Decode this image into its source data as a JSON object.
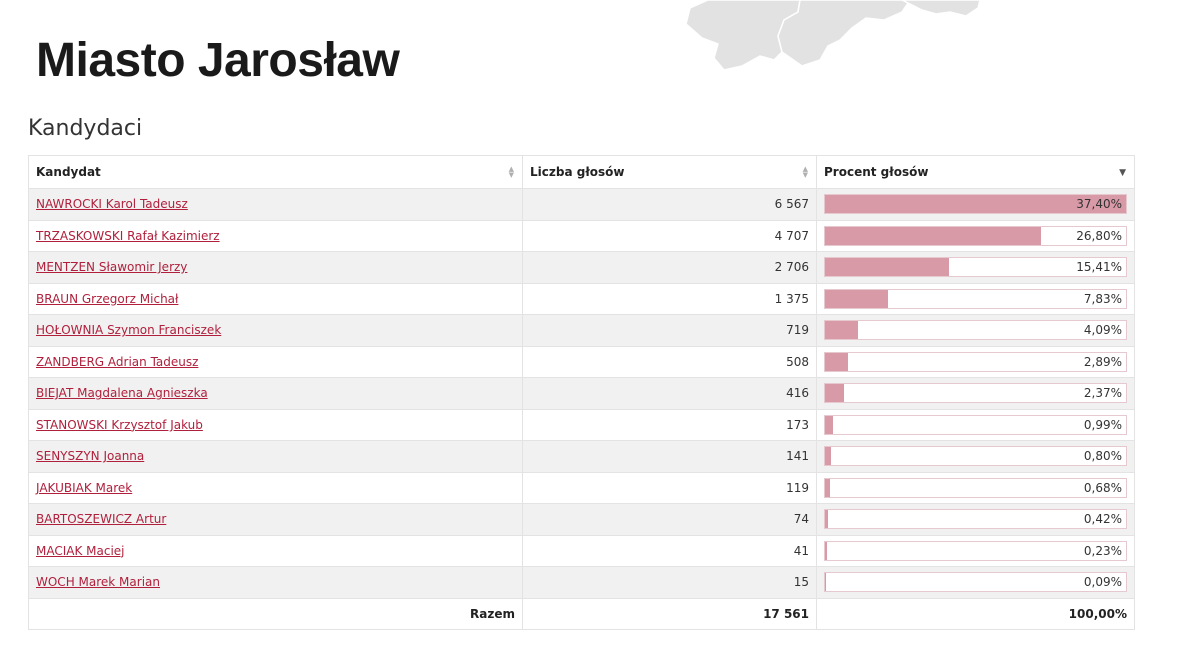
{
  "header": {
    "city_title": "Miasto Jarosław",
    "section_title": "Kandydaci"
  },
  "table": {
    "columns": [
      "Kandydat",
      "Liczba głosów",
      "Procent głosów"
    ],
    "sort": {
      "column": "Procent głosów",
      "direction": "descending"
    },
    "rows": [
      {
        "name": "NAWROCKI Karol Tadeusz",
        "votes": "6 567",
        "percent": "37,40%",
        "share": 0.374
      },
      {
        "name": "TRZASKOWSKI Rafał Kazimierz",
        "votes": "4 707",
        "percent": "26,80%",
        "share": 0.268
      },
      {
        "name": "MENTZEN Sławomir Jerzy",
        "votes": "2 706",
        "percent": "15,41%",
        "share": 0.1541
      },
      {
        "name": "BRAUN Grzegorz Michał",
        "votes": "1 375",
        "percent": "7,83%",
        "share": 0.0783
      },
      {
        "name": "HOŁOWNIA Szymon Franciszek",
        "votes": "719",
        "percent": "4,09%",
        "share": 0.0409
      },
      {
        "name": "ZANDBERG Adrian Tadeusz",
        "votes": "508",
        "percent": "2,89%",
        "share": 0.0289
      },
      {
        "name": "BIEJAT Magdalena Agnieszka",
        "votes": "416",
        "percent": "2,37%",
        "share": 0.0237
      },
      {
        "name": "STANOWSKI Krzysztof Jakub",
        "votes": "173",
        "percent": "0,99%",
        "share": 0.0099
      },
      {
        "name": "SENYSZYN Joanna",
        "votes": "141",
        "percent": "0,80%",
        "share": 0.008
      },
      {
        "name": "JAKUBIAK Marek",
        "votes": "119",
        "percent": "0,68%",
        "share": 0.0068
      },
      {
        "name": "BARTOSZEWICZ Artur",
        "votes": "74",
        "percent": "0,42%",
        "share": 0.0042
      },
      {
        "name": "MACIAK Maciej",
        "votes": "41",
        "percent": "0,23%",
        "share": 0.0023
      },
      {
        "name": "WOCH Marek Marian",
        "votes": "15",
        "percent": "0,09%",
        "share": 0.0009
      }
    ],
    "footer": {
      "label": "Razem",
      "votes": "17 561",
      "percent": "100,00%"
    }
  },
  "colors": {
    "link": "#b0203c",
    "bar_fill": "#d99aa8",
    "row_stripe": "#f1f1f1",
    "map_fill": "#e2e2e2"
  },
  "icons": [
    "sort-icon",
    "sort-descending-icon",
    "map-region-shape"
  ]
}
